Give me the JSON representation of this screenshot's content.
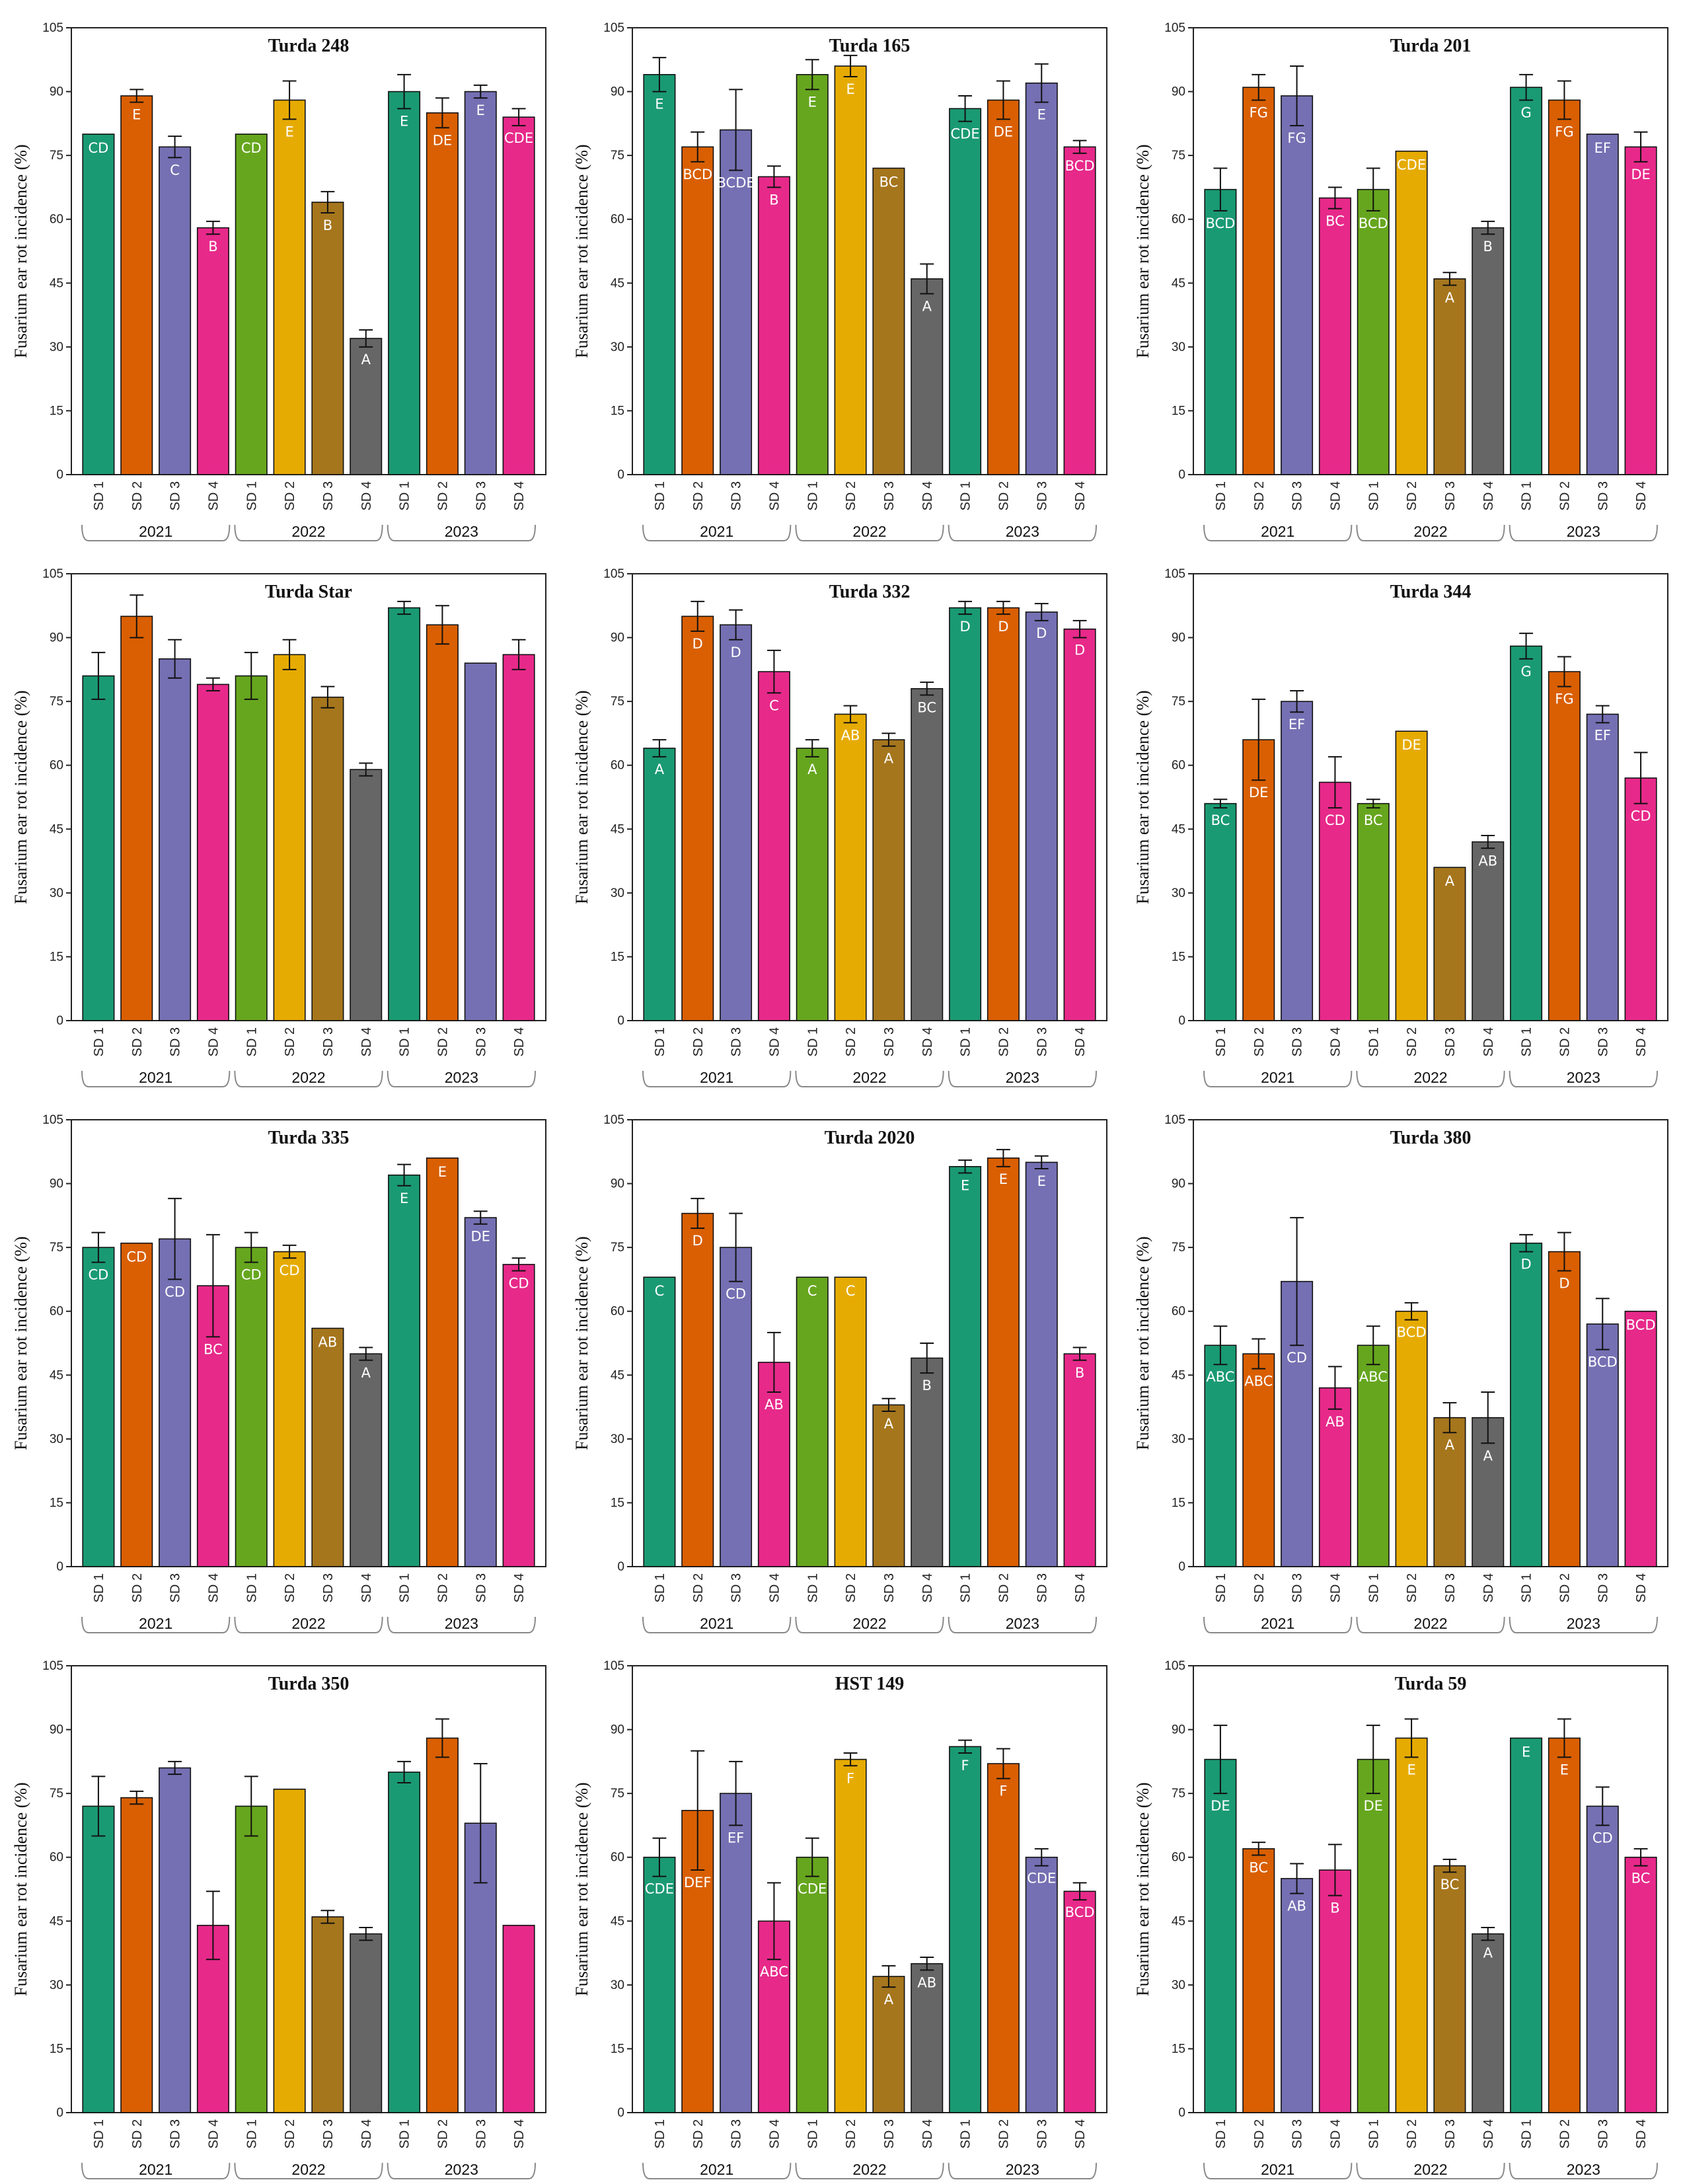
{
  "chart_data": [
    {
      "type": "bar",
      "title": "Turda 248",
      "ylabel": "Fusarium ear rot incidence (%)",
      "ylim": [
        0,
        105
      ],
      "yticks": [
        0,
        15,
        30,
        45,
        60,
        75,
        90,
        105
      ],
      "categories": [
        "SD 1",
        "SD 2",
        "SD 3",
        "SD 4",
        "SD 1",
        "SD 2",
        "SD 3",
        "SD 4",
        "SD 1",
        "SD 2",
        "SD 3",
        "SD 4"
      ],
      "groups": [
        "2021",
        "2022",
        "2023"
      ],
      "values": [
        80,
        89,
        77,
        58,
        80,
        88,
        64,
        32,
        90,
        85,
        90,
        84
      ],
      "errors": [
        0,
        1.5,
        2.5,
        1.5,
        0,
        4.5,
        2.5,
        2,
        4,
        3.5,
        1.5,
        2
      ],
      "letters": [
        "CD",
        "E",
        "C",
        "B",
        "CD",
        "E",
        "B",
        "A",
        "E",
        "DE",
        "E",
        "CDE"
      ]
    },
    {
      "type": "bar",
      "title": "Turda 165",
      "ylabel": "Fusarium ear rot incidence (%)",
      "ylim": [
        0,
        105
      ],
      "yticks": [
        0,
        15,
        30,
        45,
        60,
        75,
        90,
        105
      ],
      "categories": [
        "SD 1",
        "SD 2",
        "SD 3",
        "SD 4",
        "SD 1",
        "SD 2",
        "SD 3",
        "SD 4",
        "SD 1",
        "SD 2",
        "SD 3",
        "SD 4"
      ],
      "groups": [
        "2021",
        "2022",
        "2023"
      ],
      "values": [
        94,
        77,
        81,
        70,
        94,
        96,
        72,
        46,
        86,
        88,
        92,
        77
      ],
      "errors": [
        4,
        3.5,
        9.5,
        2.5,
        3.5,
        2.5,
        0,
        3.5,
        3,
        4.5,
        4.5,
        1.5
      ],
      "letters": [
        "E",
        "BCD",
        "BCDE",
        "B",
        "E",
        "E",
        "BC",
        "A",
        "CDE",
        "DE",
        "E",
        "BCD"
      ]
    },
    {
      "type": "bar",
      "title": "Turda 201",
      "ylabel": "Fusarium ear rot incidence (%)",
      "ylim": [
        0,
        105
      ],
      "yticks": [
        0,
        15,
        30,
        45,
        60,
        75,
        90,
        105
      ],
      "categories": [
        "SD 1",
        "SD 2",
        "SD 3",
        "SD 4",
        "SD 1",
        "SD 2",
        "SD 3",
        "SD 4",
        "SD 1",
        "SD 2",
        "SD 3",
        "SD 4"
      ],
      "groups": [
        "2021",
        "2022",
        "2023"
      ],
      "values": [
        67,
        91,
        89,
        65,
        67,
        76,
        46,
        58,
        91,
        88,
        80,
        77
      ],
      "errors": [
        5,
        3,
        7,
        2.5,
        5,
        0,
        1.5,
        1.5,
        3,
        4.5,
        0,
        3.5
      ],
      "letters": [
        "BCD",
        "FG",
        "FG",
        "BC",
        "BCD",
        "CDE",
        "A",
        "B",
        "G",
        "FG",
        "EF",
        "DE"
      ]
    },
    {
      "type": "bar",
      "title": "Turda Star",
      "ylabel": "Fusarium ear rot incidence (%)",
      "ylim": [
        0,
        105
      ],
      "yticks": [
        0,
        15,
        30,
        45,
        60,
        75,
        90,
        105
      ],
      "categories": [
        "SD 1",
        "SD 2",
        "SD 3",
        "SD 4",
        "SD 1",
        "SD 2",
        "SD 3",
        "SD 4",
        "SD 1",
        "SD 2",
        "SD 3",
        "SD 4"
      ],
      "groups": [
        "2021",
        "2022",
        "2023"
      ],
      "values": [
        81,
        95,
        85,
        79,
        81,
        86,
        76,
        59,
        97,
        93,
        84,
        86
      ],
      "errors": [
        5.5,
        5,
        4.5,
        1.5,
        5.5,
        3.5,
        2.5,
        1.5,
        1.5,
        4.5,
        0,
        3.5
      ],
      "letters": [
        "",
        "",
        "",
        "",
        "",
        "",
        "",
        "",
        "",
        "",
        "",
        ""
      ]
    },
    {
      "type": "bar",
      "title": "Turda 332",
      "ylabel": "Fusarium ear rot incidence (%)",
      "ylim": [
        0,
        105
      ],
      "yticks": [
        0,
        15,
        30,
        45,
        60,
        75,
        90,
        105
      ],
      "categories": [
        "SD 1",
        "SD 2",
        "SD 3",
        "SD 4",
        "SD 1",
        "SD 2",
        "SD 3",
        "SD 4",
        "SD 1",
        "SD 2",
        "SD 3",
        "SD 4"
      ],
      "groups": [
        "2021",
        "2022",
        "2023"
      ],
      "values": [
        64,
        95,
        93,
        82,
        64,
        72,
        66,
        78,
        97,
        97,
        96,
        92
      ],
      "errors": [
        2,
        3.5,
        3.5,
        5,
        2,
        2,
        1.5,
        1.5,
        1.5,
        1.5,
        2,
        2
      ],
      "letters": [
        "A",
        "D",
        "D",
        "C",
        "A",
        "AB",
        "A",
        "BC",
        "D",
        "D",
        "D",
        "D"
      ]
    },
    {
      "type": "bar",
      "title": "Turda 344",
      "ylabel": "Fusarium ear rot incidence (%)",
      "ylim": [
        0,
        105
      ],
      "yticks": [
        0,
        15,
        30,
        45,
        60,
        75,
        90,
        105
      ],
      "categories": [
        "SD 1",
        "SD 2",
        "SD 3",
        "SD 4",
        "SD 1",
        "SD 2",
        "SD 3",
        "SD 4",
        "SD 1",
        "SD 2",
        "SD 3",
        "SD 4"
      ],
      "groups": [
        "2021",
        "2022",
        "2023"
      ],
      "values": [
        51,
        66,
        75,
        56,
        51,
        68,
        36,
        42,
        88,
        82,
        72,
        57
      ],
      "errors": [
        1,
        9.5,
        2.5,
        6,
        1,
        0,
        0,
        1.5,
        3,
        3.5,
        2,
        6
      ],
      "letters": [
        "BC",
        "DE",
        "EF",
        "CD",
        "BC",
        "DE",
        "A",
        "AB",
        "G",
        "FG",
        "EF",
        "CD"
      ]
    },
    {
      "type": "bar",
      "title": "Turda 335",
      "ylabel": "Fusarium ear rot incidence (%)",
      "ylim": [
        0,
        105
      ],
      "yticks": [
        0,
        15,
        30,
        45,
        60,
        75,
        90,
        105
      ],
      "categories": [
        "SD 1",
        "SD 2",
        "SD 3",
        "SD 4",
        "SD 1",
        "SD 2",
        "SD 3",
        "SD 4",
        "SD 1",
        "SD 2",
        "SD 3",
        "SD 4"
      ],
      "groups": [
        "2021",
        "2022",
        "2023"
      ],
      "values": [
        75,
        76,
        77,
        66,
        75,
        74,
        56,
        50,
        92,
        96,
        82,
        71
      ],
      "errors": [
        3.5,
        0,
        9.5,
        12,
        3.5,
        1.5,
        0,
        1.5,
        2.5,
        0,
        1.5,
        1.5
      ],
      "letters": [
        "CD",
        "CD",
        "CD",
        "BC",
        "CD",
        "CD",
        "AB",
        "A",
        "E",
        "E",
        "DE",
        "CD"
      ]
    },
    {
      "type": "bar",
      "title": "Turda 2020",
      "ylabel": "Fusarium ear rot incidence (%)",
      "ylim": [
        0,
        105
      ],
      "yticks": [
        0,
        15,
        30,
        45,
        60,
        75,
        90,
        105
      ],
      "categories": [
        "SD 1",
        "SD 2",
        "SD 3",
        "SD 4",
        "SD 1",
        "SD 2",
        "SD 3",
        "SD 4",
        "SD 1",
        "SD 2",
        "SD 3",
        "SD 4"
      ],
      "groups": [
        "2021",
        "2022",
        "2023"
      ],
      "values": [
        68,
        83,
        75,
        48,
        68,
        68,
        38,
        49,
        94,
        96,
        95,
        50
      ],
      "errors": [
        0,
        3.5,
        8,
        7,
        0,
        0,
        1.5,
        3.5,
        1.5,
        2,
        1.5,
        1.5
      ],
      "letters": [
        "C",
        "D",
        "CD",
        "AB",
        "C",
        "C",
        "A",
        "B",
        "E",
        "E",
        "E",
        "B"
      ]
    },
    {
      "type": "bar",
      "title": "Turda 380",
      "ylabel": "Fusarium ear rot incidence (%)",
      "ylim": [
        0,
        105
      ],
      "yticks": [
        0,
        15,
        30,
        45,
        60,
        75,
        90,
        105
      ],
      "categories": [
        "SD 1",
        "SD 2",
        "SD 3",
        "SD 4",
        "SD 1",
        "SD 2",
        "SD 3",
        "SD 4",
        "SD 1",
        "SD 2",
        "SD 3",
        "SD 4"
      ],
      "groups": [
        "2021",
        "2022",
        "2023"
      ],
      "values": [
        52,
        50,
        67,
        42,
        52,
        60,
        35,
        35,
        76,
        74,
        57,
        60
      ],
      "errors": [
        4.5,
        3.5,
        15,
        5,
        4.5,
        2,
        3.5,
        6,
        2,
        4.5,
        6,
        0
      ],
      "letters": [
        "ABC",
        "ABC",
        "CD",
        "AB",
        "ABC",
        "BCD",
        "A",
        "A",
        "D",
        "D",
        "BCD",
        "BCD"
      ]
    },
    {
      "type": "bar",
      "title": "Turda 350",
      "ylabel": "Fusarium ear rot incidence (%)",
      "ylim": [
        0,
        105
      ],
      "yticks": [
        0,
        15,
        30,
        45,
        60,
        75,
        90,
        105
      ],
      "categories": [
        "SD 1",
        "SD 2",
        "SD 3",
        "SD 4",
        "SD 1",
        "SD 2",
        "SD 3",
        "SD 4",
        "SD 1",
        "SD 2",
        "SD 3",
        "SD 4"
      ],
      "groups": [
        "2021",
        "2022",
        "2023"
      ],
      "values": [
        72,
        74,
        81,
        44,
        72,
        76,
        46,
        42,
        80,
        88,
        68,
        44
      ],
      "errors": [
        7,
        1.5,
        1.5,
        8,
        7,
        0,
        1.5,
        1.5,
        2.5,
        4.5,
        14,
        0
      ],
      "letters": [
        "",
        "",
        "",
        "",
        "",
        "",
        "",
        "",
        "",
        "",
        "",
        ""
      ]
    },
    {
      "type": "bar",
      "title": "HST 149",
      "ylabel": "Fusarium ear rot incidence (%)",
      "ylim": [
        0,
        105
      ],
      "yticks": [
        0,
        15,
        30,
        45,
        60,
        75,
        90,
        105
      ],
      "categories": [
        "SD 1",
        "SD 2",
        "SD 3",
        "SD 4",
        "SD 1",
        "SD 2",
        "SD 3",
        "SD 4",
        "SD 1",
        "SD 2",
        "SD 3",
        "SD 4"
      ],
      "groups": [
        "2021",
        "2022",
        "2023"
      ],
      "values": [
        60,
        71,
        75,
        45,
        60,
        83,
        32,
        35,
        86,
        82,
        60,
        52
      ],
      "errors": [
        4.5,
        14,
        7.5,
        9,
        4.5,
        1.5,
        2.5,
        1.5,
        1.5,
        3.5,
        2,
        2
      ],
      "letters": [
        "CDE",
        "DEF",
        "EF",
        "ABC",
        "CDE",
        "F",
        "A",
        "AB",
        "F",
        "F",
        "CDE",
        "BCD"
      ]
    },
    {
      "type": "bar",
      "title": "Turda 59",
      "ylabel": "Fusarium ear rot incidence (%)",
      "ylim": [
        0,
        105
      ],
      "yticks": [
        0,
        15,
        30,
        45,
        60,
        75,
        90,
        105
      ],
      "categories": [
        "SD 1",
        "SD 2",
        "SD 3",
        "SD 4",
        "SD 1",
        "SD 2",
        "SD 3",
        "SD 4",
        "SD 1",
        "SD 2",
        "SD 3",
        "SD 4"
      ],
      "groups": [
        "2021",
        "2022",
        "2023"
      ],
      "values": [
        83,
        62,
        55,
        57,
        83,
        88,
        58,
        42,
        88,
        88,
        72,
        60
      ],
      "errors": [
        8,
        1.5,
        3.5,
        6,
        8,
        4.5,
        1.5,
        1.5,
        0,
        4.5,
        4.5,
        2
      ],
      "letters": [
        "DE",
        "BC",
        "AB",
        "B",
        "DE",
        "E",
        "BC",
        "A",
        "E",
        "E",
        "CD",
        "BC"
      ]
    }
  ],
  "colors": {
    "2021": [
      "#1a9a72",
      "#d95f02",
      "#7570b3",
      "#e7298a"
    ],
    "2022": [
      "#66a61e",
      "#e6ab02",
      "#a6761d",
      "#666666"
    ],
    "2023": [
      "#1a9a72",
      "#d95f02",
      "#7570b3",
      "#e7298a"
    ]
  }
}
